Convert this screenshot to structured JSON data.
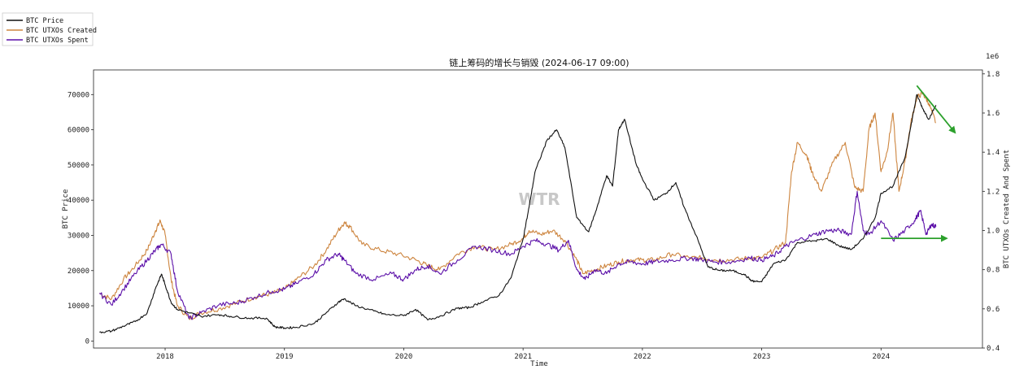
{
  "chart_data": {
    "type": "line",
    "title": "链上筹码的增长与销毁 (2024-06-17 09:00)",
    "xlabel": "Time",
    "ylabel": "BTC Price",
    "y2label": "BTC UTXOs Created And Spent",
    "y2_offset_text": "1e6",
    "watermark": "WTR",
    "legend_position": "top-left",
    "grid": false,
    "xlim": [
      2017.4,
      2024.85
    ],
    "ylim": [
      -2000,
      77000
    ],
    "y2lim": [
      0.4,
      1.82
    ],
    "x_ticks": [
      2018,
      2019,
      2020,
      2021,
      2022,
      2023,
      2024
    ],
    "x_tick_labels": [
      "2018",
      "2019",
      "2020",
      "2021",
      "2022",
      "2023",
      "2024"
    ],
    "y_ticks": [
      0,
      10000,
      20000,
      30000,
      40000,
      50000,
      60000,
      70000
    ],
    "y_tick_labels": [
      "0",
      "10000",
      "20000",
      "30000",
      "40000",
      "50000",
      "60000",
      "70000"
    ],
    "y2_ticks": [
      0.4,
      0.6,
      0.8,
      1.0,
      1.2,
      1.4,
      1.6,
      1.8
    ],
    "y2_tick_labels": [
      "0.4",
      "0.6",
      "0.8",
      "1.0",
      "1.2",
      "1.4",
      "1.6",
      "1.8"
    ],
    "colors": {
      "price": "#111111",
      "created": "#cd853f",
      "spent": "#5b0fa8",
      "arrow": "#2ca02c"
    },
    "series": [
      {
        "name": "BTC Price",
        "axis": "left",
        "key": "price",
        "x": [
          2017.45,
          2017.55,
          2017.65,
          2017.75,
          2017.85,
          2017.92,
          2017.97,
          2018.0,
          2018.05,
          2018.1,
          2018.2,
          2018.3,
          2018.45,
          2018.55,
          2018.7,
          2018.85,
          2018.92,
          2019.0,
          2019.1,
          2019.25,
          2019.35,
          2019.45,
          2019.5,
          2019.6,
          2019.75,
          2019.85,
          2020.0,
          2020.1,
          2020.2,
          2020.3,
          2020.45,
          2020.55,
          2020.65,
          2020.8,
          2020.9,
          2021.0,
          2021.05,
          2021.1,
          2021.2,
          2021.28,
          2021.35,
          2021.45,
          2021.55,
          2021.62,
          2021.7,
          2021.75,
          2021.8,
          2021.85,
          2021.95,
          2022.0,
          2022.1,
          2022.2,
          2022.28,
          2022.35,
          2022.45,
          2022.55,
          2022.65,
          2022.75,
          2022.85,
          2022.92,
          2023.0,
          2023.1,
          2023.2,
          2023.3,
          2023.45,
          2023.55,
          2023.65,
          2023.75,
          2023.85,
          2023.95,
          2024.0,
          2024.1,
          2024.2,
          2024.25,
          2024.3,
          2024.35,
          2024.4,
          2024.46
        ],
        "y": [
          2500,
          2800,
          4200,
          5500,
          8000,
          15000,
          19000,
          16000,
          11000,
          9000,
          8000,
          7000,
          7500,
          7000,
          6500,
          6500,
          4000,
          3700,
          3900,
          5000,
          8000,
          11000,
          12000,
          10000,
          8500,
          7500,
          7200,
          9000,
          6000,
          7000,
          9300,
          9500,
          11000,
          13000,
          18000,
          29000,
          38000,
          48000,
          57000,
          60000,
          55000,
          35000,
          31000,
          38000,
          47000,
          44000,
          60000,
          63000,
          50000,
          46000,
          40000,
          42000,
          45000,
          38000,
          30000,
          21000,
          20000,
          20000,
          19000,
          17000,
          16800,
          22000,
          23000,
          28000,
          28500,
          29000,
          27000,
          26000,
          29000,
          35000,
          42000,
          44000,
          52000,
          61000,
          70000,
          66000,
          63000,
          67000
        ]
      },
      {
        "name": "BTC UTXOs Created",
        "axis": "right",
        "key": "created",
        "x": [
          2017.45,
          2017.55,
          2017.65,
          2017.75,
          2017.85,
          2017.92,
          2017.96,
          2018.0,
          2018.05,
          2018.1,
          2018.2,
          2018.3,
          2018.45,
          2018.6,
          2018.75,
          2018.9,
          2019.0,
          2019.1,
          2019.25,
          2019.35,
          2019.45,
          2019.5,
          2019.55,
          2019.65,
          2019.8,
          2019.95,
          2020.1,
          2020.2,
          2020.3,
          2020.45,
          2020.6,
          2020.75,
          2020.9,
          2021.0,
          2021.05,
          2021.15,
          2021.25,
          2021.35,
          2021.45,
          2021.5,
          2021.6,
          2021.7,
          2021.8,
          2021.9,
          2022.0,
          2022.1,
          2022.25,
          2022.4,
          2022.5,
          2022.6,
          2022.75,
          2022.9,
          2023.0,
          2023.1,
          2023.2,
          2023.25,
          2023.3,
          2023.38,
          2023.42,
          2023.5,
          2023.6,
          2023.7,
          2023.78,
          2023.85,
          2023.9,
          2023.95,
          2024.0,
          2024.05,
          2024.1,
          2024.15,
          2024.2,
          2024.25,
          2024.3,
          2024.35,
          2024.4,
          2024.46
        ],
        "y": [
          0.68,
          0.65,
          0.75,
          0.82,
          0.9,
          1.0,
          1.05,
          0.98,
          0.75,
          0.62,
          0.55,
          0.58,
          0.6,
          0.63,
          0.66,
          0.68,
          0.7,
          0.75,
          0.82,
          0.9,
          1.0,
          1.04,
          1.02,
          0.93,
          0.9,
          0.88,
          0.85,
          0.82,
          0.8,
          0.88,
          0.92,
          0.9,
          0.93,
          0.96,
          1.0,
          0.98,
          1.0,
          0.95,
          0.85,
          0.78,
          0.8,
          0.82,
          0.84,
          0.85,
          0.85,
          0.85,
          0.88,
          0.86,
          0.86,
          0.85,
          0.85,
          0.86,
          0.86,
          0.9,
          0.94,
          1.3,
          1.45,
          1.38,
          1.3,
          1.2,
          1.35,
          1.45,
          1.22,
          1.2,
          1.52,
          1.6,
          1.3,
          1.4,
          1.6,
          1.2,
          1.35,
          1.55,
          1.68,
          1.7,
          1.65,
          1.55
        ]
      },
      {
        "name": "BTC UTXOs Spent",
        "axis": "right",
        "key": "spent",
        "x": [
          2017.45,
          2017.55,
          2017.65,
          2017.75,
          2017.85,
          2017.92,
          2017.97,
          2018.05,
          2018.1,
          2018.2,
          2018.3,
          2018.45,
          2018.6,
          2018.75,
          2018.9,
          2019.0,
          2019.1,
          2019.25,
          2019.35,
          2019.45,
          2019.5,
          2019.6,
          2019.75,
          2019.9,
          2020.0,
          2020.1,
          2020.2,
          2020.3,
          2020.45,
          2020.6,
          2020.75,
          2020.9,
          2021.0,
          2021.1,
          2021.2,
          2021.3,
          2021.38,
          2021.45,
          2021.52,
          2021.6,
          2021.7,
          2021.8,
          2021.9,
          2022.0,
          2022.1,
          2022.25,
          2022.4,
          2022.5,
          2022.6,
          2022.75,
          2022.9,
          2023.0,
          2023.1,
          2023.2,
          2023.3,
          2023.45,
          2023.55,
          2023.65,
          2023.75,
          2023.8,
          2023.85,
          2023.9,
          2024.0,
          2024.1,
          2024.2,
          2024.28,
          2024.33,
          2024.38,
          2024.42,
          2024.46
        ],
        "y": [
          0.68,
          0.62,
          0.7,
          0.78,
          0.85,
          0.9,
          0.93,
          0.88,
          0.7,
          0.55,
          0.58,
          0.62,
          0.63,
          0.66,
          0.69,
          0.7,
          0.73,
          0.78,
          0.85,
          0.88,
          0.85,
          0.78,
          0.75,
          0.78,
          0.75,
          0.8,
          0.82,
          0.78,
          0.85,
          0.92,
          0.9,
          0.88,
          0.92,
          0.95,
          0.93,
          0.9,
          0.95,
          0.8,
          0.75,
          0.8,
          0.78,
          0.83,
          0.84,
          0.83,
          0.84,
          0.85,
          0.86,
          0.85,
          0.84,
          0.84,
          0.86,
          0.85,
          0.87,
          0.92,
          0.95,
          0.98,
          1.0,
          1.0,
          0.98,
          1.2,
          1.0,
          0.98,
          1.05,
          0.95,
          1.0,
          1.05,
          1.1,
          0.98,
          1.03,
          1.02
        ]
      }
    ],
    "annotations": [
      {
        "type": "arrow",
        "from": [
          2024.3,
          1.74
        ],
        "to": [
          2024.62,
          1.5
        ]
      },
      {
        "type": "arrow",
        "from": [
          2024.0,
          0.96
        ],
        "to": [
          2024.55,
          0.96
        ]
      }
    ]
  }
}
